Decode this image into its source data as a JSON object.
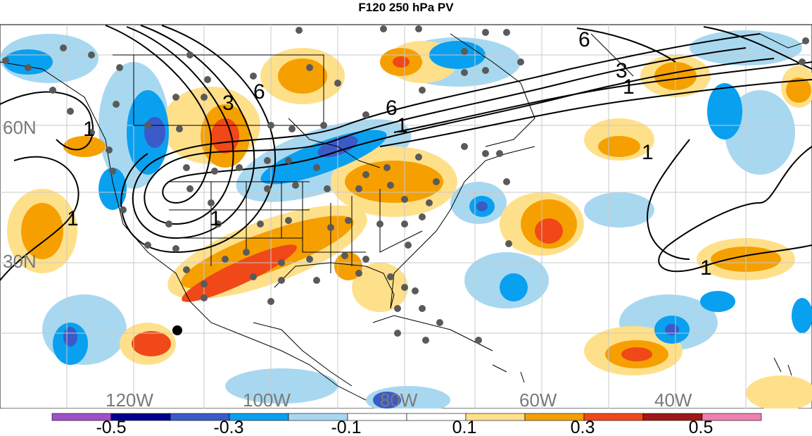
{
  "title": "F120 250 hPa PV",
  "map": {
    "lat_labels": [
      "60N",
      "30N"
    ],
    "lon_labels": [
      "120W",
      "100W",
      "80W",
      "60W",
      "40W"
    ],
    "contour_labels": [
      "6",
      "6",
      "6",
      "3",
      "1",
      "1",
      "1",
      "1",
      "1",
      "1",
      "1",
      "3"
    ]
  },
  "legend": {
    "tick_labels": [
      "-0.5",
      "-0.3",
      "-0.1",
      "0.1",
      "0.3",
      "0.5"
    ],
    "colors": [
      "#a050c8",
      "#000090",
      "#3a5ac8",
      "#0aa0f0",
      "#a8d8f0",
      "#ffffff",
      "#ffffff",
      "#ffe08a",
      "#f5a000",
      "#f04818",
      "#a01818",
      "#f080b0"
    ]
  }
}
